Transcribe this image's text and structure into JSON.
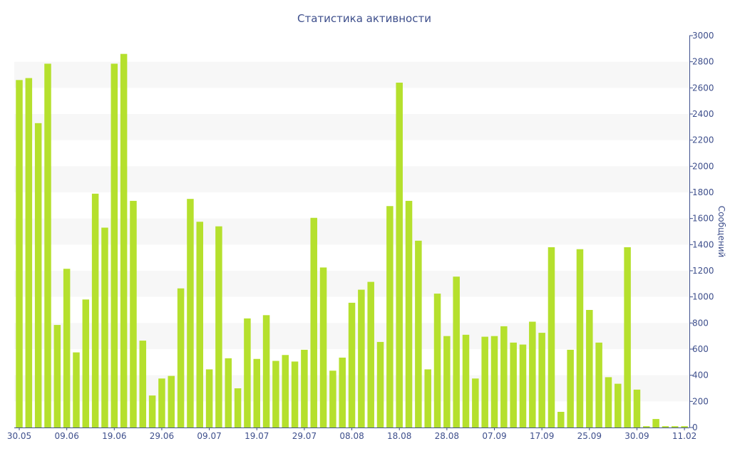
{
  "chart_data": {
    "type": "bar",
    "title": "Статистика активности",
    "ylabel": "Сообщений",
    "xlabel": "",
    "ylim": [
      0,
      3000
    ],
    "yticks": [
      0,
      200,
      400,
      600,
      800,
      1000,
      1200,
      1400,
      1600,
      1800,
      2000,
      2200,
      2400,
      2600,
      2800,
      3000
    ],
    "y_axis_side": "right",
    "xtick_labels": [
      "30.05",
      "09.06",
      "19.06",
      "29.06",
      "09.07",
      "19.07",
      "29.07",
      "08.08",
      "18.08",
      "28.08",
      "07.09",
      "17.09",
      "25.09",
      "30.09",
      "11.02"
    ],
    "xtick_positions": [
      0,
      5,
      10,
      15,
      20,
      25,
      30,
      35,
      40,
      45,
      50,
      55,
      60,
      65,
      70
    ],
    "values": [
      2660,
      2675,
      2330,
      2785,
      785,
      1215,
      575,
      980,
      1790,
      1530,
      2785,
      2860,
      1735,
      665,
      245,
      375,
      395,
      1065,
      1750,
      1575,
      445,
      1540,
      530,
      300,
      835,
      525,
      860,
      510,
      555,
      505,
      595,
      1605,
      1225,
      435,
      535,
      955,
      1055,
      1115,
      655,
      1695,
      2640,
      1735,
      1430,
      445,
      1025,
      700,
      1155,
      710,
      375,
      695,
      700,
      775,
      650,
      635,
      810,
      725,
      1380,
      120,
      595,
      1365,
      900,
      650,
      385,
      335,
      1380,
      290,
      10,
      65,
      10,
      10,
      10
    ],
    "bar_color": "#b5e02d",
    "band_color": "#f7f7f7",
    "axis_color": "#3e4f8c",
    "grid": "alternating horizontal bands"
  }
}
